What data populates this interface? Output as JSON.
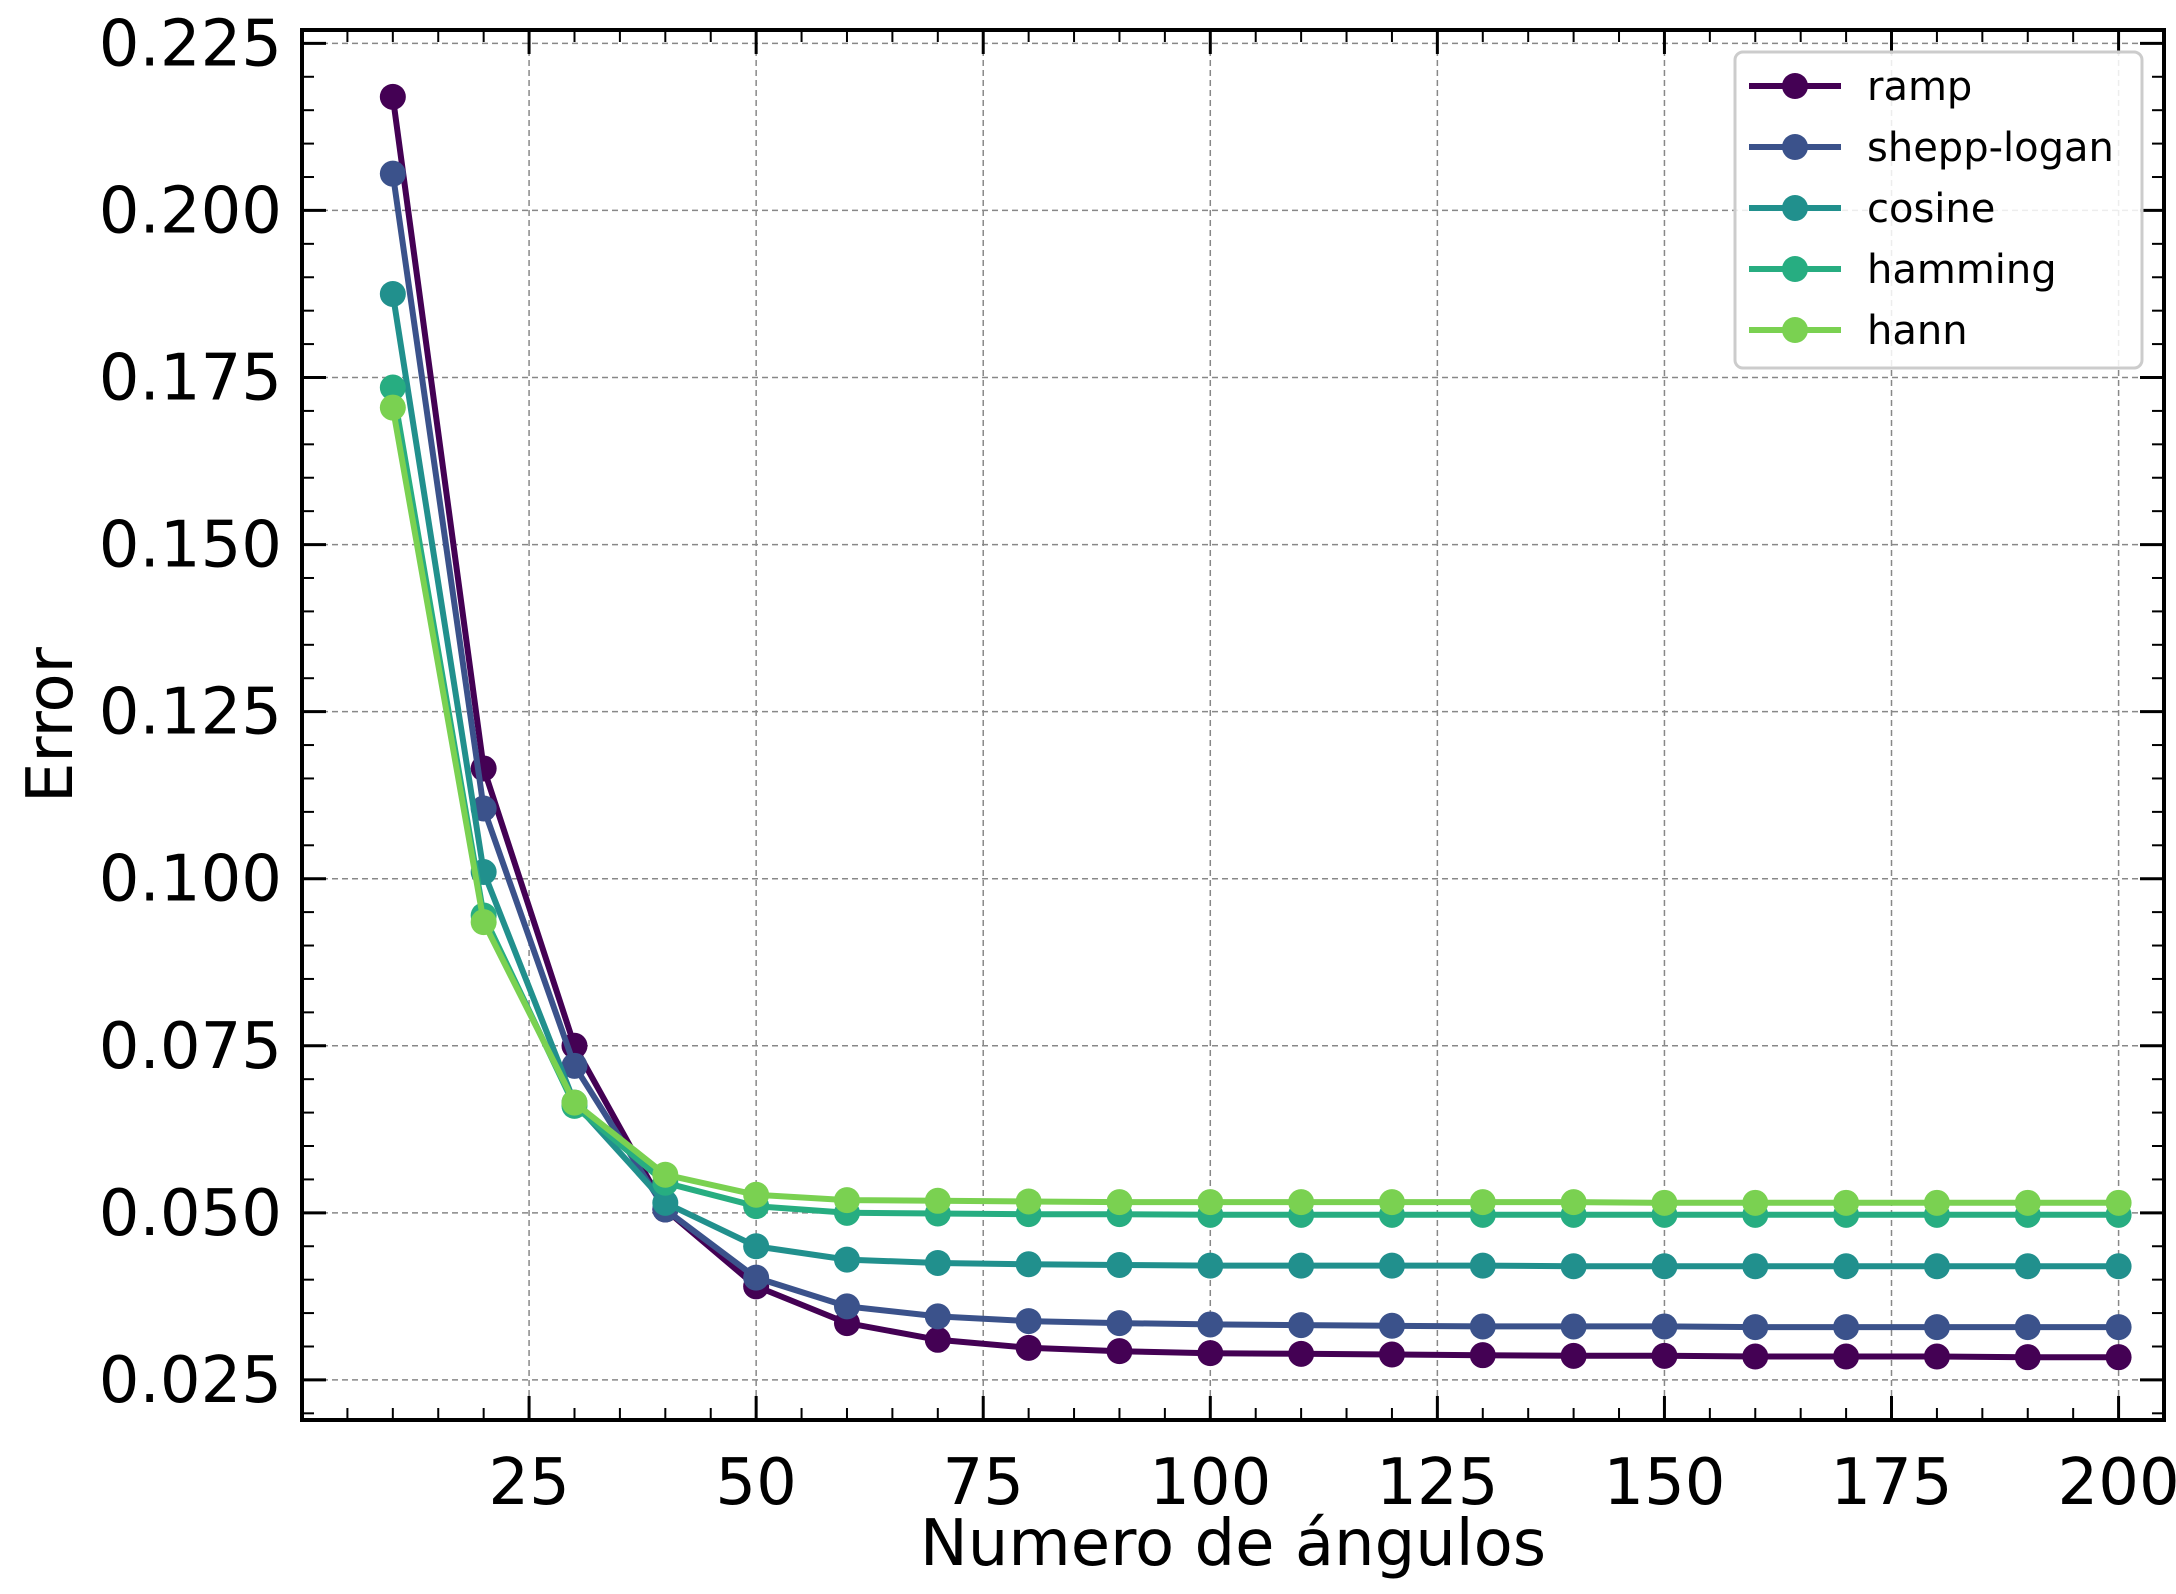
{
  "chart_data": {
    "type": "line",
    "xlabel": "Numero de ángulos",
    "ylabel": "Error",
    "xlim": [
      0,
      205
    ],
    "ylim": [
      0.019,
      0.227
    ],
    "xticks": [
      25,
      50,
      75,
      100,
      125,
      150,
      175,
      200
    ],
    "yticks": [
      0.025,
      0.05,
      0.075,
      0.1,
      0.125,
      0.15,
      0.175,
      0.2,
      0.225
    ],
    "xtick_labels": [
      "25",
      "50",
      "75",
      "100",
      "125",
      "150",
      "175",
      "200"
    ],
    "ytick_labels": [
      "0.025",
      "0.050",
      "0.075",
      "0.100",
      "0.125",
      "0.150",
      "0.175",
      "0.200",
      "0.225"
    ],
    "grid": true,
    "legend_position": "top-right",
    "x": [
      10,
      20,
      30,
      40,
      50,
      60,
      70,
      80,
      90,
      100,
      110,
      120,
      130,
      140,
      150,
      160,
      170,
      180,
      190,
      200
    ],
    "series": [
      {
        "name": "ramp",
        "color": "#440154",
        "values": [
          0.217,
          0.1165,
          0.075,
          0.0505,
          0.039,
          0.0335,
          0.031,
          0.0298,
          0.0293,
          0.029,
          0.0289,
          0.0288,
          0.0287,
          0.0286,
          0.0286,
          0.0285,
          0.0285,
          0.0285,
          0.0284,
          0.0284
        ]
      },
      {
        "name": "shepp-logan",
        "color": "#3b528b",
        "values": [
          0.2055,
          0.1105,
          0.072,
          0.0505,
          0.0403,
          0.036,
          0.0345,
          0.0338,
          0.0335,
          0.0333,
          0.0332,
          0.0331,
          0.033,
          0.033,
          0.033,
          0.0329,
          0.0329,
          0.0329,
          0.0329,
          0.0329
        ]
      },
      {
        "name": "cosine",
        "color": "#21908d",
        "values": [
          0.1875,
          0.101,
          0.0665,
          0.0515,
          0.045,
          0.043,
          0.0425,
          0.0423,
          0.0422,
          0.0421,
          0.0421,
          0.0421,
          0.0421,
          0.042,
          0.042,
          0.042,
          0.042,
          0.042,
          0.042,
          0.042
        ]
      },
      {
        "name": "hamming",
        "color": "#27ad81",
        "values": [
          0.1735,
          0.0945,
          0.066,
          0.0545,
          0.051,
          0.05,
          0.0499,
          0.0498,
          0.0498,
          0.0497,
          0.0497,
          0.0497,
          0.0497,
          0.0497,
          0.0497,
          0.0497,
          0.0497,
          0.0497,
          0.0497,
          0.0497
        ]
      },
      {
        "name": "hann",
        "color": "#7ad151",
        "values": [
          0.1705,
          0.0935,
          0.0665,
          0.0557,
          0.0527,
          0.0519,
          0.0518,
          0.0517,
          0.0516,
          0.0516,
          0.0516,
          0.0516,
          0.0516,
          0.0516,
          0.0515,
          0.0515,
          0.0515,
          0.0515,
          0.0515,
          0.0515
        ]
      }
    ]
  }
}
